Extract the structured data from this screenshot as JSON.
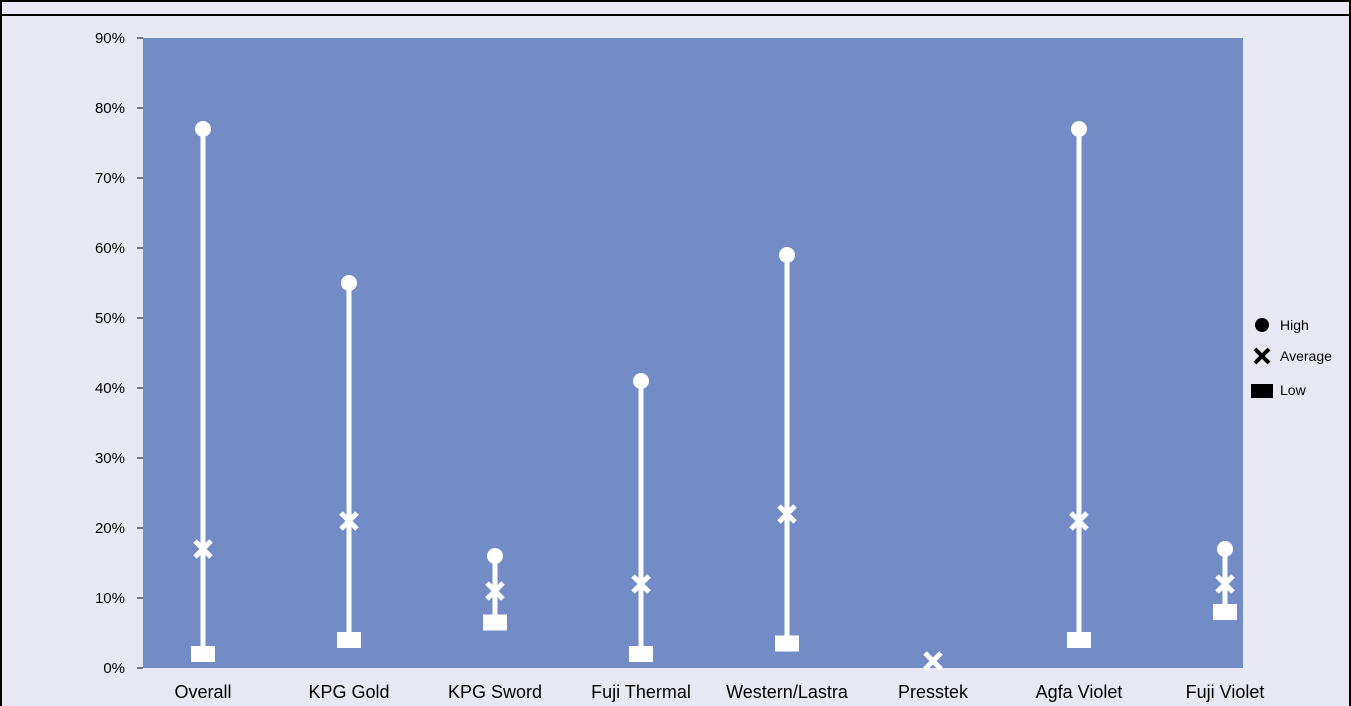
{
  "chart_data": {
    "type": "high-low-average",
    "title": "",
    "xlabel": "",
    "ylabel": "",
    "ylim": [
      0,
      90
    ],
    "y_ticks": [
      "0%",
      "10%",
      "20%",
      "30%",
      "40%",
      "50%",
      "60%",
      "70%",
      "80%",
      "90%"
    ],
    "y_tick_values": [
      0,
      10,
      20,
      30,
      40,
      50,
      60,
      70,
      80,
      90
    ],
    "categories": [
      "Overall",
      "KPG Gold",
      "KPG Sword",
      "Fuji Thermal",
      "Western/Lastra",
      "Presstek",
      "Agfa Violet",
      "Fuji Violet"
    ],
    "series": [
      {
        "name": "High",
        "marker": "circle",
        "values": [
          77,
          55,
          16,
          41,
          59,
          null,
          77,
          17
        ]
      },
      {
        "name": "Average",
        "marker": "x",
        "values": [
          17,
          21,
          11,
          12,
          22,
          1,
          21,
          12
        ]
      },
      {
        "name": "Low",
        "marker": "square",
        "values": [
          2,
          4,
          6.5,
          2,
          3.5,
          null,
          4,
          8
        ]
      }
    ],
    "legend_position": "right",
    "colors": {
      "plot_background": "#738cc6",
      "marks": "#ffffff",
      "frame_background": "#e8e8f2",
      "legend_marks": "#000000"
    }
  }
}
